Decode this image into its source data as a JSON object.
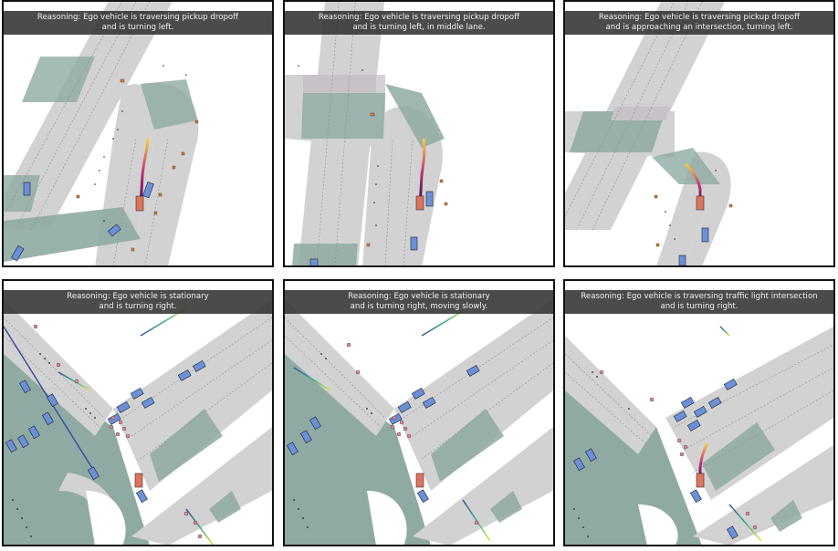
{
  "colors": {
    "road": "#d2d2d2",
    "crosswalk_zone": "#8faaa3",
    "intersection": "#c7c2c7",
    "lane_line": "#8e8e8e",
    "ego": "#e0735c",
    "vehicle": "#6a90d8",
    "caption_bg": "#333333"
  },
  "panels": [
    {
      "id": "p1",
      "line1": "Reasoning: Ego vehicle is traversing pickup dropoff",
      "line2": "and is turning left."
    },
    {
      "id": "p2",
      "line1": "Reasoning: Ego vehicle is traversing pickup dropoff",
      "line2": "and is turning left, in middle lane."
    },
    {
      "id": "p3",
      "line1": "Reasoning: Ego vehicle is traversing pickup dropoff",
      "line2": "and is approaching an intersection, turning left."
    },
    {
      "id": "p4",
      "line1": "Reasoning: Ego vehicle is stationary",
      "line2": "and is turning right."
    },
    {
      "id": "p5",
      "line1": "Reasoning: Ego vehicle is stationary",
      "line2": "and is turning right, moving slowly."
    },
    {
      "id": "p6",
      "line1": "Reasoning: Ego vehicle is traversing traffic light intersection",
      "line2": "and is turning right."
    }
  ]
}
